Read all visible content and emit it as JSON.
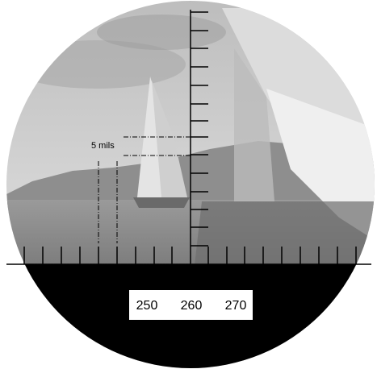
{
  "reticle": {
    "label": "5 mils",
    "compass": [
      250,
      260,
      270
    ]
  }
}
